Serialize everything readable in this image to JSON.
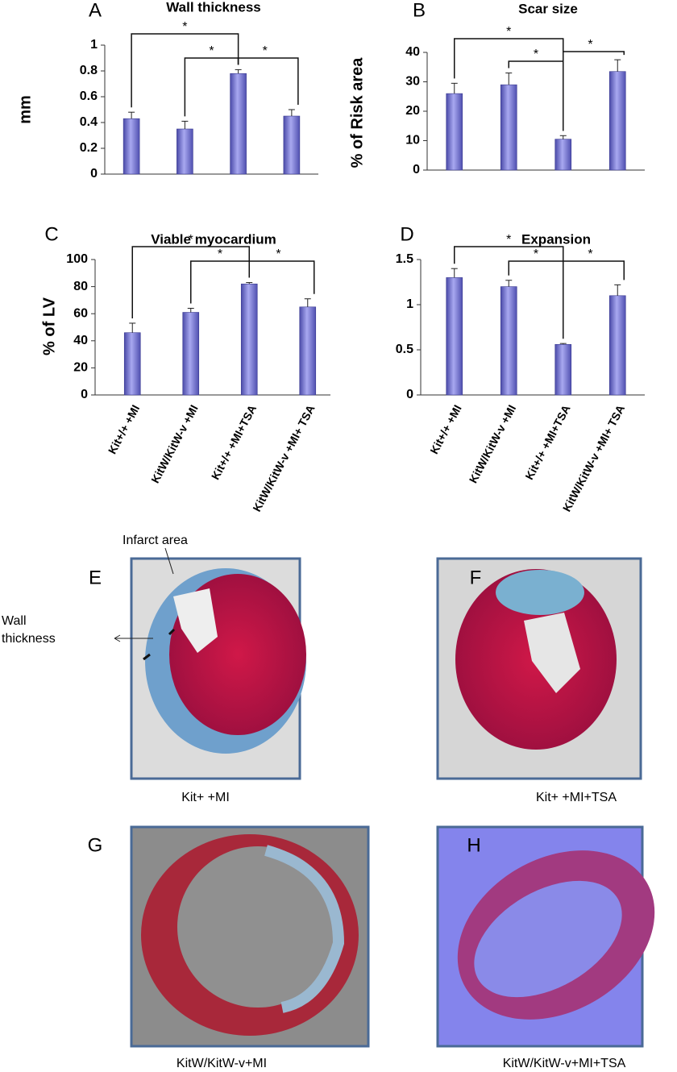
{
  "chart_data": [
    {
      "type": "bar",
      "panel": "A",
      "title": "Wall thickness",
      "y_label": "mm",
      "categories": [
        null,
        null,
        null,
        null
      ],
      "values": [
        0.43,
        0.35,
        0.78,
        0.45
      ],
      "errors": [
        0.05,
        0.06,
        0.03,
        0.05
      ],
      "ylim": [
        0,
        1
      ],
      "yticks": [
        0,
        0.2,
        0.4,
        0.6,
        0.8,
        1
      ],
      "color": "#7878d8",
      "significance": [
        {
          "pair": [
            0,
            2
          ],
          "label": "*"
        },
        {
          "pair": [
            1,
            2
          ],
          "label": "*"
        },
        {
          "pair": [
            2,
            3
          ],
          "label": "*"
        }
      ]
    },
    {
      "type": "bar",
      "panel": "B",
      "title": "Scar size",
      "y_label": "% of Risk area",
      "categories": [
        null,
        null,
        null,
        null
      ],
      "values": [
        26,
        29,
        10.5,
        33.5
      ],
      "errors": [
        3.5,
        4,
        1.2,
        4
      ],
      "ylim": [
        0,
        40
      ],
      "yticks": [
        0,
        10,
        20,
        30,
        40
      ],
      "color": "#7878d8",
      "significance": [
        {
          "pair": [
            0,
            2
          ],
          "label": "*"
        },
        {
          "pair": [
            1,
            2
          ],
          "label": "*"
        },
        {
          "pair": [
            2,
            3
          ],
          "label": "*"
        }
      ]
    },
    {
      "type": "bar",
      "panel": "C",
      "title": "Viable myocardium",
      "y_label": "% of LV",
      "categories": [
        "Kit+/+ +MI",
        "KitW/KitW-v +MI",
        "Kit+/+ +MI+TSA",
        "KitW/KitW-v +MI+ TSA"
      ],
      "values": [
        46,
        61,
        82,
        65
      ],
      "errors": [
        7,
        3,
        1,
        6
      ],
      "ylim": [
        0,
        100
      ],
      "yticks": [
        0,
        20,
        40,
        60,
        80,
        100
      ],
      "color": "#7878d8",
      "significance": [
        {
          "pair": [
            0,
            2
          ],
          "label": "*"
        },
        {
          "pair": [
            1,
            2
          ],
          "label": "*"
        },
        {
          "pair": [
            2,
            3
          ],
          "label": "*"
        }
      ]
    },
    {
      "type": "bar",
      "panel": "D",
      "title": "Expansion",
      "categories": [
        "Kit+/+ +MI",
        "KitW/KitW-v +MI",
        "Kit+/+ +MI+TSA",
        "KitW/KitW-v +MI+ TSA"
      ],
      "values": [
        1.3,
        1.2,
        0.56,
        1.1
      ],
      "errors": [
        0.1,
        0.07,
        0.01,
        0.12
      ],
      "ylim": [
        0,
        1.5
      ],
      "yticks": [
        0,
        0.5,
        1,
        1.5
      ],
      "color": "#7878d8",
      "significance": [
        {
          "pair": [
            0,
            2
          ],
          "label": "*"
        },
        {
          "pair": [
            1,
            2
          ],
          "label": "*"
        },
        {
          "pair": [
            2,
            3
          ],
          "label": "*"
        }
      ]
    }
  ],
  "images": [
    {
      "panel": "E",
      "caption": "Kit+ +MI"
    },
    {
      "panel": "F",
      "caption": "Kit+ +MI+TSA"
    },
    {
      "panel": "G",
      "caption": "KitW/KitW-v+MI"
    },
    {
      "panel": "H",
      "caption": "KitW/KitW-v+MI+TSA"
    }
  ],
  "annotations": {
    "infarct": "Infarct area",
    "wall": "Wall thickness"
  }
}
